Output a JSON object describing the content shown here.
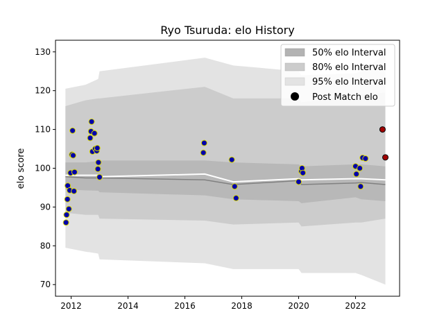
{
  "chart_data": {
    "type": "scatter",
    "title": "Ryo Tsuruda: elo History",
    "xlabel": "",
    "ylabel": "elo score",
    "xlim": [
      2011.45,
      2023.55
    ],
    "ylim": [
      67,
      133
    ],
    "xticks": [
      2012,
      2014,
      2016,
      2018,
      2020,
      2022
    ],
    "yticks": [
      70,
      80,
      90,
      100,
      110,
      120,
      130
    ],
    "legend_position": "top-right",
    "legend": [
      {
        "label": "50% elo Interval",
        "kind": "band",
        "color": "#b3b3b3"
      },
      {
        "label": "80% elo Interval",
        "kind": "band",
        "color": "#cccccc"
      },
      {
        "label": "95% elo Interval",
        "kind": "band",
        "color": "#e3e3e3"
      },
      {
        "label": "Post Match elo",
        "kind": "marker",
        "color": "#000000"
      }
    ],
    "bands": {
      "x": [
        2011.8,
        2012.5,
        2012.95,
        2013.0,
        2016.7,
        2017.7,
        2020.0,
        2020.1,
        2022.0,
        2022.2,
        2023.05
      ],
      "p50_low": [
        94.5,
        94.3,
        94.2,
        93.8,
        93.0,
        92.0,
        91.5,
        91.0,
        92.5,
        92.0,
        91.5
      ],
      "p50_high": [
        101.5,
        101.5,
        101.8,
        102.0,
        102.0,
        101.5,
        101.0,
        100.5,
        101.0,
        101.0,
        100.5
      ],
      "p80_low": [
        88.5,
        88.0,
        88.0,
        87.0,
        86.5,
        85.5,
        86.0,
        85.0,
        86.0,
        86.0,
        87.0
      ],
      "p80_high": [
        116.0,
        117.5,
        118.0,
        118.0,
        121.0,
        118.0,
        118.0,
        117.0,
        119.0,
        119.0,
        119.5
      ],
      "p95_low": [
        79.5,
        78.5,
        78.0,
        76.5,
        75.5,
        74.0,
        74.0,
        73.0,
        73.0,
        72.5,
        70.0
      ],
      "p95_high": [
        120.5,
        121.5,
        123.0,
        125.0,
        128.5,
        126.5,
        125.0,
        124.0,
        124.5,
        125.0,
        129.5
      ],
      "mean": [
        97.8,
        97.5,
        97.5,
        97.5,
        97.0,
        95.8,
        96.8,
        95.8,
        96.2,
        96.3,
        95.8
      ],
      "median": [
        98.2,
        98.2,
        98.2,
        97.8,
        98.5,
        96.5,
        97.3,
        97.0,
        97.3,
        97.3,
        97.0
      ]
    },
    "series": [
      {
        "points": [
          [
            2011.82,
            86.0
          ],
          [
            2011.84,
            88.0
          ],
          [
            2011.87,
            92.0
          ],
          [
            2011.88,
            95.5
          ],
          [
            2011.92,
            89.5
          ],
          [
            2011.95,
            94.3
          ],
          [
            2011.98,
            98.8
          ],
          [
            2012.03,
            103.5
          ],
          [
            2012.05,
            109.7
          ],
          [
            2012.07,
            103.3
          ],
          [
            2012.1,
            94.1
          ],
          [
            2012.12,
            99.0
          ],
          [
            2012.67,
            107.8
          ],
          [
            2012.7,
            109.5
          ],
          [
            2012.72,
            112.0
          ],
          [
            2012.75,
            104.3
          ],
          [
            2012.82,
            109.0
          ],
          [
            2012.85,
            105.0
          ],
          [
            2012.9,
            104.5
          ],
          [
            2012.92,
            105.2
          ],
          [
            2012.94,
            99.8
          ],
          [
            2012.96,
            101.5
          ],
          [
            2013.0,
            97.7
          ],
          [
            2016.65,
            104.0
          ],
          [
            2016.68,
            106.5
          ],
          [
            2017.65,
            102.2
          ],
          [
            2017.75,
            95.3
          ],
          [
            2017.8,
            92.3
          ],
          [
            2020.0,
            96.5
          ],
          [
            2020.1,
            99.2
          ],
          [
            2020.12,
            100.0
          ],
          [
            2020.15,
            98.8
          ],
          [
            2022.0,
            100.5
          ],
          [
            2022.03,
            98.5
          ],
          [
            2022.15,
            100.0
          ],
          [
            2022.18,
            95.3
          ],
          [
            2022.25,
            102.7
          ],
          [
            2022.35,
            102.5
          ]
        ],
        "fill": "#0000aa",
        "edge": "#d4d400"
      },
      {
        "points": [
          [
            2022.95,
            110.0
          ],
          [
            2023.05,
            102.8
          ]
        ],
        "fill": "#a00000",
        "edge": "#000000"
      }
    ]
  }
}
